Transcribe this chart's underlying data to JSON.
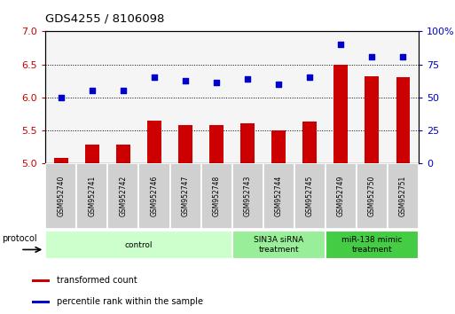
{
  "title": "GDS4255 / 8106098",
  "samples": [
    "GSM952740",
    "GSM952741",
    "GSM952742",
    "GSM952746",
    "GSM952747",
    "GSM952748",
    "GSM952743",
    "GSM952744",
    "GSM952745",
    "GSM952749",
    "GSM952750",
    "GSM952751"
  ],
  "bar_values": [
    5.08,
    5.28,
    5.28,
    5.65,
    5.58,
    5.58,
    5.6,
    5.5,
    5.63,
    6.5,
    6.32,
    6.3
  ],
  "dot_values_left": [
    6.0,
    6.1,
    6.1,
    6.3,
    6.25,
    6.22,
    6.28,
    6.2,
    6.3,
    6.8,
    6.62,
    6.62
  ],
  "bar_color": "#cc0000",
  "dot_color": "#0000cc",
  "ylim_left": [
    5.0,
    7.0
  ],
  "ylim_right": [
    0,
    100
  ],
  "yticks_left": [
    5.0,
    5.5,
    6.0,
    6.5,
    7.0
  ],
  "yticks_right": [
    0,
    25,
    50,
    75,
    100
  ],
  "groups": [
    {
      "label": "control",
      "start": 0,
      "end": 6,
      "color": "#ccffcc"
    },
    {
      "label": "SIN3A siRNA\ntreatment",
      "start": 6,
      "end": 9,
      "color": "#99ee99"
    },
    {
      "label": "miR-138 mimic\ntreatment",
      "start": 9,
      "end": 12,
      "color": "#44cc44"
    }
  ],
  "legend_bar_label": "transformed count",
  "legend_dot_label": "percentile rank within the sample",
  "protocol_label": "protocol"
}
